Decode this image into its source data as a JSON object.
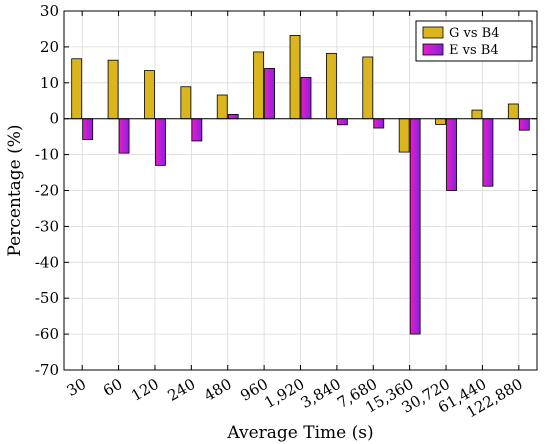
{
  "chart_data": {
    "type": "bar",
    "title": "",
    "xlabel": "Average Time (s)",
    "ylabel": "Percentage (%)",
    "ylim": [
      -70,
      30
    ],
    "yticks": [
      30,
      20,
      10,
      0,
      -10,
      -20,
      -30,
      -40,
      -50,
      -60,
      -70
    ],
    "grid": true,
    "legend_position": "top-right",
    "categories": [
      "30",
      "60",
      "120",
      "240",
      "480",
      "960",
      "1,920",
      "3,840",
      "7,680",
      "15,360",
      "30,720",
      "61,440",
      "122,880"
    ],
    "series": [
      {
        "name": "G vs B4",
        "color": "#dab51e",
        "values": [
          16.7,
          16.3,
          13.4,
          8.9,
          6.6,
          18.6,
          23.2,
          18.2,
          17.2,
          -9.3,
          -1.6,
          2.4,
          4.1
        ]
      },
      {
        "name": "E vs B4",
        "color": "#9b1fd6",
        "values": [
          -5.8,
          -9.6,
          -13.0,
          -6.2,
          1.2,
          14.0,
          11.5,
          -1.7,
          -2.6,
          -60.0,
          -20.0,
          -18.8,
          -3.2
        ]
      }
    ]
  }
}
